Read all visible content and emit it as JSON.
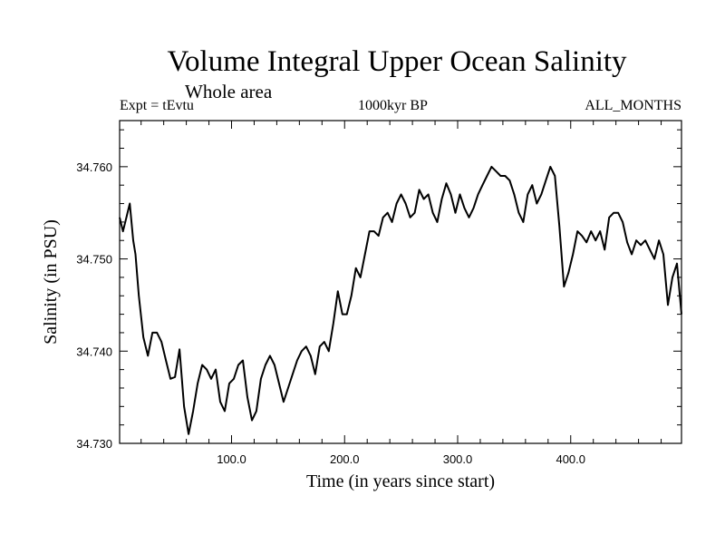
{
  "chart_data": {
    "type": "line",
    "title": "Volume Integral Upper Ocean Salinity",
    "subtitle": "Whole area",
    "expt_label": "Expt = tEvtu",
    "period_label": "1000kyr BP",
    "months_label": "ALL_MONTHS",
    "xlabel": "Time (in years since start)",
    "ylabel": "Salinity (in PSU)",
    "xlim": [
      1,
      498
    ],
    "ylim": [
      34.73,
      34.765
    ],
    "xticks": [
      100,
      200,
      300,
      400
    ],
    "xtick_labels": [
      "100.0",
      "200.0",
      "300.0",
      "400.0"
    ],
    "yticks": [
      34.73,
      34.74,
      34.75,
      34.76
    ],
    "ytick_labels": [
      "34.730",
      "34.740",
      "34.750",
      "34.760"
    ],
    "grid": false,
    "series": [
      {
        "name": "Salinity",
        "color": "#000000",
        "x": [
          1,
          4,
          7,
          10,
          13,
          15,
          18,
          22,
          26,
          30,
          34,
          38,
          42,
          46,
          50,
          54,
          58,
          62,
          66,
          70,
          74,
          78,
          82,
          86,
          90,
          94,
          98,
          102,
          106,
          110,
          114,
          118,
          122,
          126,
          130,
          134,
          138,
          142,
          146,
          150,
          154,
          158,
          162,
          166,
          170,
          174,
          178,
          182,
          186,
          190,
          194,
          198,
          202,
          206,
          210,
          214,
          218,
          222,
          226,
          230,
          234,
          238,
          242,
          246,
          250,
          254,
          258,
          262,
          266,
          270,
          274,
          278,
          282,
          286,
          290,
          294,
          298,
          302,
          306,
          310,
          314,
          318,
          322,
          326,
          330,
          334,
          338,
          342,
          346,
          350,
          354,
          358,
          362,
          366,
          370,
          374,
          378,
          382,
          386,
          390,
          394,
          398,
          402,
          406,
          410,
          414,
          418,
          422,
          426,
          430,
          434,
          438,
          442,
          446,
          450,
          454,
          458,
          462,
          466,
          470,
          474,
          478,
          482,
          486,
          490,
          494,
          498
        ],
        "y": [
          34.7545,
          34.753,
          34.7545,
          34.756,
          34.752,
          34.7505,
          34.746,
          34.7415,
          34.7395,
          34.742,
          34.742,
          34.741,
          34.739,
          34.737,
          34.7372,
          34.7402,
          34.734,
          34.731,
          34.7335,
          34.7365,
          34.7385,
          34.738,
          34.737,
          34.738,
          34.7345,
          34.7335,
          34.7365,
          34.737,
          34.7385,
          34.739,
          34.735,
          34.7325,
          34.7335,
          34.737,
          34.7385,
          34.7395,
          34.7385,
          34.7365,
          34.7345,
          34.736,
          34.7375,
          34.739,
          34.74,
          34.7405,
          34.7395,
          34.7375,
          34.7405,
          34.741,
          34.74,
          34.743,
          34.7465,
          34.744,
          34.744,
          34.746,
          34.749,
          34.748,
          34.7505,
          34.753,
          34.753,
          34.7525,
          34.7545,
          34.755,
          34.754,
          34.756,
          34.757,
          34.756,
          34.7545,
          34.755,
          34.7575,
          34.7565,
          34.757,
          34.755,
          34.754,
          34.7565,
          34.7582,
          34.757,
          34.755,
          34.757,
          34.7555,
          34.7545,
          34.7555,
          34.757,
          34.758,
          34.759,
          34.76,
          34.7595,
          34.759,
          34.759,
          34.7585,
          34.757,
          34.755,
          34.754,
          34.757,
          34.758,
          34.756,
          34.757,
          34.7585,
          34.76,
          34.759,
          34.7535,
          34.747,
          34.7485,
          34.7505,
          34.753,
          34.7525,
          34.7518,
          34.753,
          34.752,
          34.753,
          34.751,
          34.7545,
          34.755,
          34.755,
          34.754,
          34.7518,
          34.7505,
          34.752,
          34.7515,
          34.752,
          34.751,
          34.75,
          34.752,
          34.7505,
          34.745,
          34.748,
          34.7495,
          34.744
        ]
      }
    ]
  }
}
